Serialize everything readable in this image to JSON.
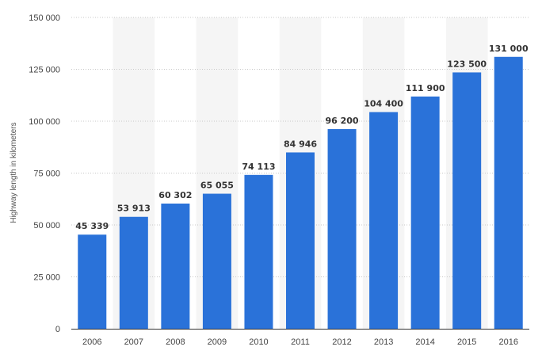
{
  "chart_data": {
    "type": "bar",
    "title": "",
    "xlabel": "",
    "ylabel": "Highway length in kilometers",
    "categories": [
      "2006",
      "2007",
      "2008",
      "2009",
      "2010",
      "2011",
      "2012",
      "2013",
      "2014",
      "2015",
      "2016"
    ],
    "values": [
      45339,
      53913,
      60302,
      65055,
      74113,
      84946,
      96200,
      104400,
      111900,
      123500,
      131000
    ],
    "value_labels": [
      "45 339",
      "53 913",
      "60 302",
      "65 055",
      "74 113",
      "84 946",
      "96 200",
      "104 400",
      "111 900",
      "123 500",
      "131 000"
    ],
    "ylim": [
      0,
      150000
    ],
    "y_ticks": [
      0,
      25000,
      50000,
      75000,
      100000,
      125000,
      150000
    ],
    "y_tick_labels": [
      "0",
      "25 000",
      "50 000",
      "75 000",
      "100 000",
      "125 000",
      "150 000"
    ],
    "grid": true,
    "bar_color": "#2a72d9",
    "band_color": "#f5f5f5"
  }
}
